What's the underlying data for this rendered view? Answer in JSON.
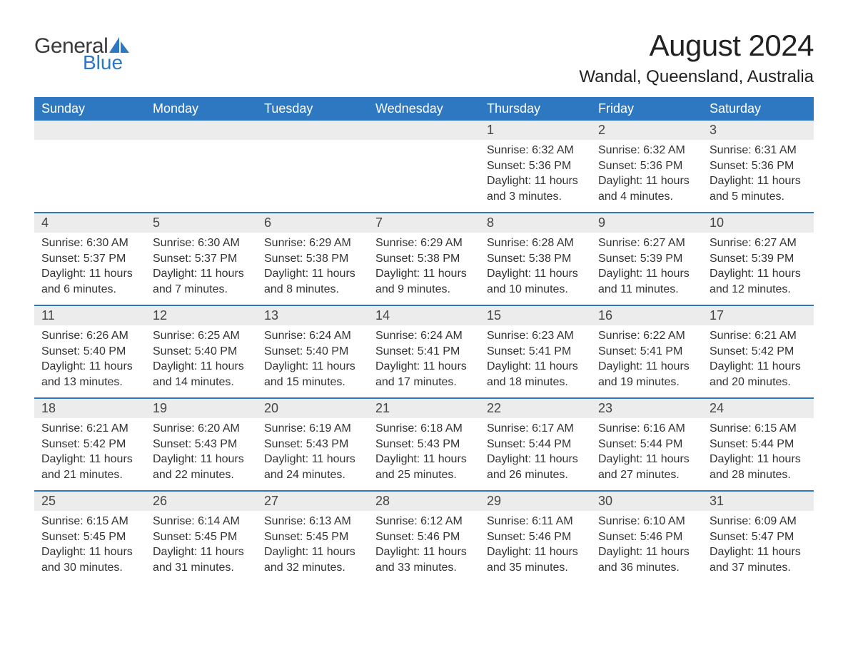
{
  "logo": {
    "word1": "General",
    "word2": "Blue",
    "icon_color": "#2e78c2",
    "text_gray": "#3a3a3a"
  },
  "title": "August 2024",
  "location": "Wandal, Queensland, Australia",
  "colors": {
    "header_bg": "#2e78c2",
    "header_text": "#ffffff",
    "strip_bg": "#ececec",
    "body_text": "#333333",
    "page_bg": "#ffffff",
    "row_border": "#2e78c2"
  },
  "typography": {
    "title_fontsize": 42,
    "location_fontsize": 24,
    "weekday_fontsize": 18,
    "daynum_fontsize": 18,
    "body_fontsize": 16,
    "logo_fontsize": 30
  },
  "weekdays": [
    "Sunday",
    "Monday",
    "Tuesday",
    "Wednesday",
    "Thursday",
    "Friday",
    "Saturday"
  ],
  "layout": {
    "columns": 7,
    "rows": 5,
    "first_day_column_index": 4
  },
  "days": [
    {
      "day": 1,
      "sunrise": "6:32 AM",
      "sunset": "5:36 PM",
      "daylight": "11 hours and 3 minutes."
    },
    {
      "day": 2,
      "sunrise": "6:32 AM",
      "sunset": "5:36 PM",
      "daylight": "11 hours and 4 minutes."
    },
    {
      "day": 3,
      "sunrise": "6:31 AM",
      "sunset": "5:36 PM",
      "daylight": "11 hours and 5 minutes."
    },
    {
      "day": 4,
      "sunrise": "6:30 AM",
      "sunset": "5:37 PM",
      "daylight": "11 hours and 6 minutes."
    },
    {
      "day": 5,
      "sunrise": "6:30 AM",
      "sunset": "5:37 PM",
      "daylight": "11 hours and 7 minutes."
    },
    {
      "day": 6,
      "sunrise": "6:29 AM",
      "sunset": "5:38 PM",
      "daylight": "11 hours and 8 minutes."
    },
    {
      "day": 7,
      "sunrise": "6:29 AM",
      "sunset": "5:38 PM",
      "daylight": "11 hours and 9 minutes."
    },
    {
      "day": 8,
      "sunrise": "6:28 AM",
      "sunset": "5:38 PM",
      "daylight": "11 hours and 10 minutes."
    },
    {
      "day": 9,
      "sunrise": "6:27 AM",
      "sunset": "5:39 PM",
      "daylight": "11 hours and 11 minutes."
    },
    {
      "day": 10,
      "sunrise": "6:27 AM",
      "sunset": "5:39 PM",
      "daylight": "11 hours and 12 minutes."
    },
    {
      "day": 11,
      "sunrise": "6:26 AM",
      "sunset": "5:40 PM",
      "daylight": "11 hours and 13 minutes."
    },
    {
      "day": 12,
      "sunrise": "6:25 AM",
      "sunset": "5:40 PM",
      "daylight": "11 hours and 14 minutes."
    },
    {
      "day": 13,
      "sunrise": "6:24 AM",
      "sunset": "5:40 PM",
      "daylight": "11 hours and 15 minutes."
    },
    {
      "day": 14,
      "sunrise": "6:24 AM",
      "sunset": "5:41 PM",
      "daylight": "11 hours and 17 minutes."
    },
    {
      "day": 15,
      "sunrise": "6:23 AM",
      "sunset": "5:41 PM",
      "daylight": "11 hours and 18 minutes."
    },
    {
      "day": 16,
      "sunrise": "6:22 AM",
      "sunset": "5:41 PM",
      "daylight": "11 hours and 19 minutes."
    },
    {
      "day": 17,
      "sunrise": "6:21 AM",
      "sunset": "5:42 PM",
      "daylight": "11 hours and 20 minutes."
    },
    {
      "day": 18,
      "sunrise": "6:21 AM",
      "sunset": "5:42 PM",
      "daylight": "11 hours and 21 minutes."
    },
    {
      "day": 19,
      "sunrise": "6:20 AM",
      "sunset": "5:43 PM",
      "daylight": "11 hours and 22 minutes."
    },
    {
      "day": 20,
      "sunrise": "6:19 AM",
      "sunset": "5:43 PM",
      "daylight": "11 hours and 24 minutes."
    },
    {
      "day": 21,
      "sunrise": "6:18 AM",
      "sunset": "5:43 PM",
      "daylight": "11 hours and 25 minutes."
    },
    {
      "day": 22,
      "sunrise": "6:17 AM",
      "sunset": "5:44 PM",
      "daylight": "11 hours and 26 minutes."
    },
    {
      "day": 23,
      "sunrise": "6:16 AM",
      "sunset": "5:44 PM",
      "daylight": "11 hours and 27 minutes."
    },
    {
      "day": 24,
      "sunrise": "6:15 AM",
      "sunset": "5:44 PM",
      "daylight": "11 hours and 28 minutes."
    },
    {
      "day": 25,
      "sunrise": "6:15 AM",
      "sunset": "5:45 PM",
      "daylight": "11 hours and 30 minutes."
    },
    {
      "day": 26,
      "sunrise": "6:14 AM",
      "sunset": "5:45 PM",
      "daylight": "11 hours and 31 minutes."
    },
    {
      "day": 27,
      "sunrise": "6:13 AM",
      "sunset": "5:45 PM",
      "daylight": "11 hours and 32 minutes."
    },
    {
      "day": 28,
      "sunrise": "6:12 AM",
      "sunset": "5:46 PM",
      "daylight": "11 hours and 33 minutes."
    },
    {
      "day": 29,
      "sunrise": "6:11 AM",
      "sunset": "5:46 PM",
      "daylight": "11 hours and 35 minutes."
    },
    {
      "day": 30,
      "sunrise": "6:10 AM",
      "sunset": "5:46 PM",
      "daylight": "11 hours and 36 minutes."
    },
    {
      "day": 31,
      "sunrise": "6:09 AM",
      "sunset": "5:47 PM",
      "daylight": "11 hours and 37 minutes."
    }
  ],
  "labels": {
    "sunrise": "Sunrise:",
    "sunset": "Sunset:",
    "daylight": "Daylight:"
  }
}
